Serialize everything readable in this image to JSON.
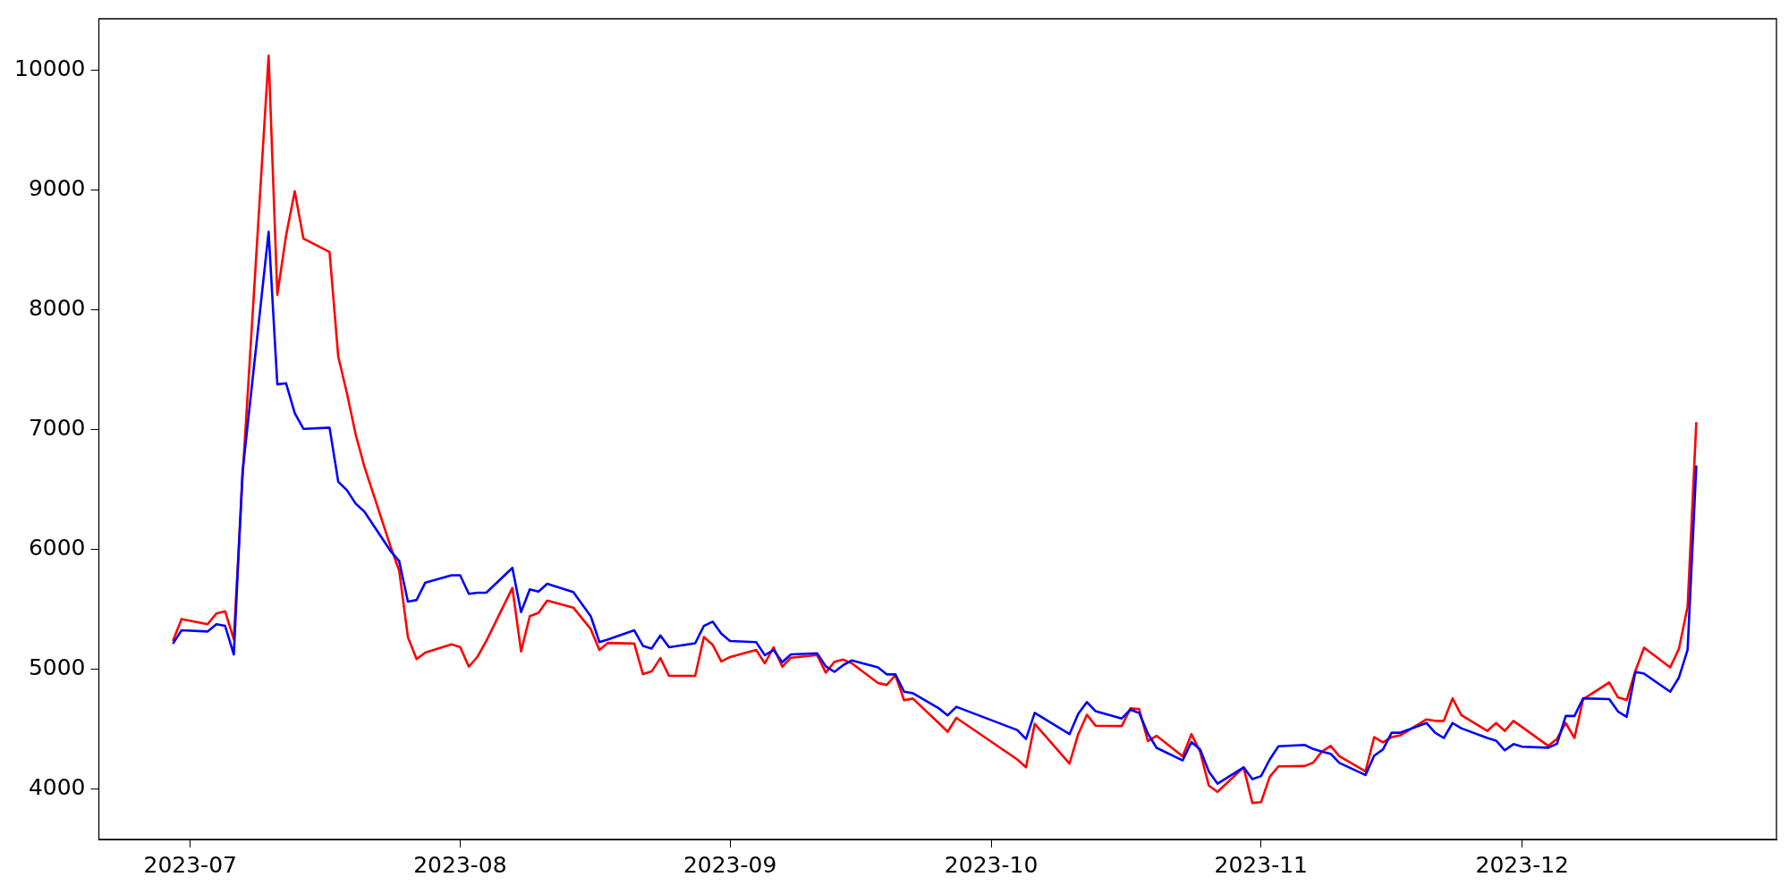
{
  "chart_data": {
    "type": "line",
    "xlim": [
      "2023-06-20T12:00",
      "2023-12-30T05:00"
    ],
    "ylim": [
      3580,
      10430
    ],
    "xticks": [
      {
        "value": "2023-07-01",
        "label": "2023-07"
      },
      {
        "value": "2023-08-01",
        "label": "2023-08"
      },
      {
        "value": "2023-09-01",
        "label": "2023-09"
      },
      {
        "value": "2023-10-01",
        "label": "2023-10"
      },
      {
        "value": "2023-11-01",
        "label": "2023-11"
      },
      {
        "value": "2023-12-01",
        "label": "2023-12"
      }
    ],
    "yticks": [
      4000,
      5000,
      6000,
      7000,
      8000,
      9000,
      10000
    ],
    "grid": false,
    "legend": false,
    "series": [
      {
        "color": "#ff0000",
        "x": [
          "2023-06-29",
          "2023-06-30",
          "2023-07-03",
          "2023-07-04",
          "2023-07-05",
          "2023-07-06",
          "2023-07-07",
          "2023-07-10",
          "2023-07-11",
          "2023-07-12",
          "2023-07-13",
          "2023-07-14",
          "2023-07-17",
          "2023-07-18",
          "2023-07-19",
          "2023-07-20",
          "2023-07-21",
          "2023-07-24",
          "2023-07-25",
          "2023-07-26",
          "2023-07-27",
          "2023-07-28",
          "2023-07-31",
          "2023-08-01",
          "2023-08-02",
          "2023-08-03",
          "2023-08-04",
          "2023-08-07",
          "2023-08-08",
          "2023-08-09",
          "2023-08-10",
          "2023-08-11",
          "2023-08-14",
          "2023-08-16",
          "2023-08-17",
          "2023-08-18",
          "2023-08-21",
          "2023-08-22",
          "2023-08-23",
          "2023-08-24",
          "2023-08-25",
          "2023-08-28",
          "2023-08-29",
          "2023-08-30",
          "2023-08-31",
          "2023-09-01",
          "2023-09-04",
          "2023-09-05",
          "2023-09-06",
          "2023-09-07",
          "2023-09-08",
          "2023-09-11",
          "2023-09-12",
          "2023-09-13",
          "2023-09-14",
          "2023-09-15",
          "2023-09-18",
          "2023-09-19",
          "2023-09-20",
          "2023-09-21",
          "2023-09-22",
          "2023-09-25",
          "2023-09-26",
          "2023-09-27",
          "2023-10-04",
          "2023-10-05",
          "2023-10-06",
          "2023-10-10",
          "2023-10-11",
          "2023-10-12",
          "2023-10-13",
          "2023-10-16",
          "2023-10-17",
          "2023-10-18",
          "2023-10-19",
          "2023-10-20",
          "2023-10-23",
          "2023-10-24",
          "2023-10-25",
          "2023-10-26",
          "2023-10-27",
          "2023-10-30",
          "2023-10-31",
          "2023-11-01",
          "2023-11-02",
          "2023-11-03",
          "2023-11-06",
          "2023-11-07",
          "2023-11-08",
          "2023-11-09",
          "2023-11-10",
          "2023-11-13",
          "2023-11-14",
          "2023-11-15",
          "2023-11-16",
          "2023-11-17",
          "2023-11-20",
          "2023-11-21",
          "2023-11-22",
          "2023-11-23",
          "2023-11-24",
          "2023-11-27",
          "2023-11-28",
          "2023-11-29",
          "2023-11-30",
          "2023-12-04",
          "2023-12-05",
          "2023-12-06",
          "2023-12-07",
          "2023-12-08",
          "2023-12-11",
          "2023-12-12",
          "2023-12-13",
          "2023-12-14",
          "2023-12-15",
          "2023-12-18",
          "2023-12-19",
          "2023-12-20",
          "2023-12-21"
        ],
        "values": [
          5236,
          5420,
          5377,
          5466,
          5485,
          5250,
          6599,
          10122,
          8126,
          8619,
          8990,
          8595,
          8483,
          7609,
          7303,
          6960,
          6693,
          6026,
          5824,
          5269,
          5086,
          5140,
          5208,
          5187,
          5022,
          5106,
          5236,
          5680,
          5149,
          5444,
          5472,
          5574,
          5515,
          5336,
          5162,
          5221,
          5215,
          4960,
          4982,
          5094,
          4945,
          4945,
          5270,
          5205,
          5066,
          5103,
          5162,
          5050,
          5184,
          5022,
          5097,
          5119,
          4973,
          5063,
          5081,
          5050,
          4886,
          4870,
          4951,
          4742,
          4756,
          4550,
          4479,
          4595,
          4248,
          4182,
          4545,
          4214,
          4459,
          4621,
          4529,
          4527,
          4674,
          4669,
          4401,
          4445,
          4274,
          4459,
          4314,
          4030,
          3977,
          4182,
          3885,
          3891,
          4103,
          4190,
          4193,
          4222,
          4314,
          4361,
          4275,
          4148,
          4434,
          4390,
          4434,
          4449,
          4582,
          4570,
          4570,
          4758,
          4618,
          4486,
          4552,
          4486,
          4570,
          4361,
          4420,
          4552,
          4427,
          4751,
          4891,
          4766,
          4744,
          4987,
          5181,
          5016,
          5170,
          5524,
          7063
        ]
      },
      {
        "color": "#0000ff",
        "x": [
          "2023-06-29",
          "2023-06-30",
          "2023-07-03",
          "2023-07-04",
          "2023-07-05",
          "2023-07-06",
          "2023-07-07",
          "2023-07-10",
          "2023-07-11",
          "2023-07-12",
          "2023-07-13",
          "2023-07-14",
          "2023-07-17",
          "2023-07-18",
          "2023-07-19",
          "2023-07-20",
          "2023-07-21",
          "2023-07-24",
          "2023-07-25",
          "2023-07-26",
          "2023-07-27",
          "2023-07-28",
          "2023-07-31",
          "2023-08-01",
          "2023-08-02",
          "2023-08-03",
          "2023-08-04",
          "2023-08-07",
          "2023-08-08",
          "2023-08-09",
          "2023-08-10",
          "2023-08-11",
          "2023-08-14",
          "2023-08-16",
          "2023-08-17",
          "2023-08-18",
          "2023-08-21",
          "2023-08-22",
          "2023-08-23",
          "2023-08-24",
          "2023-08-25",
          "2023-08-28",
          "2023-08-29",
          "2023-08-30",
          "2023-08-31",
          "2023-09-01",
          "2023-09-04",
          "2023-09-05",
          "2023-09-06",
          "2023-09-07",
          "2023-09-08",
          "2023-09-11",
          "2023-09-12",
          "2023-09-13",
          "2023-09-14",
          "2023-09-15",
          "2023-09-18",
          "2023-09-19",
          "2023-09-20",
          "2023-09-21",
          "2023-09-22",
          "2023-09-25",
          "2023-09-26",
          "2023-09-27",
          "2023-10-04",
          "2023-10-05",
          "2023-10-06",
          "2023-10-10",
          "2023-10-11",
          "2023-10-12",
          "2023-10-13",
          "2023-10-16",
          "2023-10-17",
          "2023-10-18",
          "2023-10-19",
          "2023-10-20",
          "2023-10-23",
          "2023-10-24",
          "2023-10-25",
          "2023-10-26",
          "2023-10-27",
          "2023-10-30",
          "2023-10-31",
          "2023-11-01",
          "2023-11-02",
          "2023-11-03",
          "2023-11-06",
          "2023-11-07",
          "2023-11-08",
          "2023-11-09",
          "2023-11-10",
          "2023-11-13",
          "2023-11-14",
          "2023-11-15",
          "2023-11-16",
          "2023-11-17",
          "2023-11-20",
          "2023-11-21",
          "2023-11-22",
          "2023-11-23",
          "2023-11-24",
          "2023-11-27",
          "2023-11-28",
          "2023-11-29",
          "2023-11-30",
          "2023-12-01",
          "2023-12-04",
          "2023-12-05",
          "2023-12-06",
          "2023-12-07",
          "2023-12-08",
          "2023-12-11",
          "2023-12-12",
          "2023-12-13",
          "2023-12-14",
          "2023-12-15",
          "2023-12-18",
          "2023-12-19",
          "2023-12-20",
          "2023-12-21"
        ],
        "values": [
          5213,
          5326,
          5316,
          5377,
          5363,
          5124,
          6646,
          8652,
          7379,
          7388,
          7139,
          7007,
          7017,
          6566,
          6495,
          6383,
          6317,
          5988,
          5903,
          5565,
          5579,
          5724,
          5785,
          5785,
          5630,
          5639,
          5639,
          5847,
          5478,
          5667,
          5649,
          5714,
          5645,
          5444,
          5227,
          5249,
          5326,
          5196,
          5174,
          5283,
          5184,
          5218,
          5363,
          5398,
          5298,
          5236,
          5227,
          5118,
          5162,
          5059,
          5125,
          5134,
          5025,
          4979,
          5035,
          5075,
          5016,
          4958,
          4958,
          4813,
          4801,
          4674,
          4616,
          4687,
          4493,
          4419,
          4637,
          4459,
          4629,
          4727,
          4650,
          4590,
          4664,
          4635,
          4464,
          4345,
          4240,
          4393,
          4332,
          4148,
          4046,
          4182,
          4083,
          4109,
          4248,
          4358,
          4369,
          4335,
          4314,
          4295,
          4219,
          4118,
          4280,
          4331,
          4471,
          4471,
          4552,
          4471,
          4427,
          4552,
          4508,
          4427,
          4405,
          4324,
          4376,
          4354,
          4346,
          4379,
          4611,
          4611,
          4758,
          4751,
          4648,
          4604,
          4979,
          4964,
          4813,
          4931,
          5163,
          6702
        ]
      }
    ]
  }
}
